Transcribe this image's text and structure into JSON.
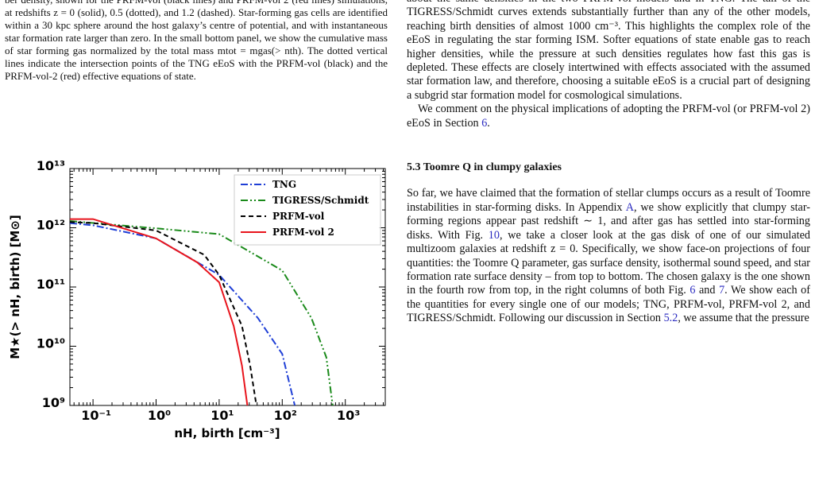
{
  "caption": {
    "text": "ber density, shown for the PRFM-vol (black lines) and PRFM-vol 2 (red lines) simulations, at redshifts z = 0 (solid), 0.5 (dotted), and 1.2 (dashed). Star-forming gas cells are identified within a 30 kpc sphere around the host galaxy’s centre of potential, and with instantaneous star formation rate larger than zero. In the small bottom panel, we show the cumulative mass of star forming gas normalized by the total mass mtot = mgas(> nth). The dotted vertical lines indicate the intersection points of the TNG eEoS with the PRFM-vol (black) and the PRFM-vol-2 (red) effective equations of state."
  },
  "chart_data": {
    "type": "line",
    "x_label": "nH, birth [cm⁻³]",
    "y_label": "M★(> nH, birth) [M⊙]",
    "log_x": true,
    "log_y": true,
    "legend": "upper right",
    "xlim": [
      0.043,
      4300
    ],
    "ylim": [
      1000000000.0,
      10000000000000.0
    ],
    "xticks": [
      {
        "value": 0.1,
        "label": "10⁻¹"
      },
      {
        "value": 1,
        "label": "10⁰"
      },
      {
        "value": 10,
        "label": "10¹"
      },
      {
        "value": 100,
        "label": "10²"
      },
      {
        "value": 1000,
        "label": "10³"
      }
    ],
    "yticks": [
      {
        "value": 1000000000.0,
        "label": "10⁹"
      },
      {
        "value": 10000000000.0,
        "label": "10¹⁰"
      },
      {
        "value": 100000000000.0,
        "label": "10¹¹"
      },
      {
        "value": 1000000000000.0,
        "label": "10¹²"
      },
      {
        "value": 10000000000000.0,
        "label": "10¹³"
      }
    ],
    "series": [
      {
        "name": "TNG",
        "color": "#1f3fd6",
        "linestyle": "dashdot",
        "x": [
          0.043,
          0.1,
          1,
          10,
          41,
          100,
          158
        ],
        "values": [
          1200000000000.0,
          1100000000000.0,
          660000000000.0,
          160000000000.0,
          30000000000.0,
          7400000000.0,
          1000000000.0
        ]
      },
      {
        "name": "TIGRESS/Schmidt",
        "color": "#1a8a1a",
        "linestyle": "dashdotdot",
        "x": [
          0.043,
          1,
          10,
          100,
          290,
          500,
          630
        ],
        "values": [
          1300000000000.0,
          980000000000.0,
          780000000000.0,
          190000000000.0,
          30000000000.0,
          6500000000.0,
          1000000000.0
        ]
      },
      {
        "name": "PRFM-vol",
        "color": "#000000",
        "linestyle": "dashed",
        "x": [
          0.043,
          0.1,
          1,
          5.8,
          10,
          23,
          31,
          39
        ],
        "values": [
          1250000000000.0,
          1200000000000.0,
          900000000000.0,
          350000000000.0,
          160000000000.0,
          22000000000.0,
          4700000000.0,
          1000000000.0
        ]
      },
      {
        "name": "PRFM-vol 2",
        "color": "#e8141c",
        "linestyle": "solid",
        "x": [
          0.043,
          0.1,
          1,
          4.5,
          10,
          17,
          23,
          28
        ],
        "values": [
          1400000000000.0,
          1400000000000.0,
          660000000000.0,
          260000000000.0,
          120000000000.0,
          22000000000.0,
          4700000000.0,
          1000000000.0
        ]
      }
    ]
  },
  "right_column": {
    "paragraph_1": "about the same densities in the two PRFM-vol models and in TNG. The tail of the TIGRESS/Schmidt curves extends substantially further than any of the other models, reaching birth densities of almost 1000 cm⁻³. This highlights the complex role of the eEoS in regulating the star forming ISM. Softer equations of state enable gas to reach higher densities, while the pressure at such densities regulates how fast this gas is depleted. These effects are closely intertwined with effects associated with the assumed star formation law, and therefore, choosing a suitable eEoS is a crucial part of designing a subgrid star formation model for cosmological simulations.",
    "paragraph_2": [
      "We comment on the physical implications of adopting the PRFM-vol (or PRFM-vol 2) eEoS in Section ",
      "6",
      "."
    ],
    "heading": "5.3 Toomre Q in clumpy galaxies",
    "paragraph_3": [
      "So far, we have claimed that the formation of stellar clumps occurs as a result of Toomre instabilities in star-forming disks. In Appendix ",
      "A",
      ", we show explicitly that clumpy star-forming regions appear past redshift ∼ 1, and after gas has settled into star-forming disks. With Fig. ",
      "10",
      ", we take a closer look at the gas disk of one of our simulated multizoom galaxies at redshift z = 0. Specifically, we show face-on projections of four quantities: the Toomre Q parameter, gas surface density, isothermal sound speed, and star formation rate surface density – from top to bottom. The chosen galaxy is the one shown in the fourth row from top, in the right columns of both Fig. ",
      "6",
      " and ",
      "7",
      ". We show each of the quantities for every single one of our models; TNG, PRFM-vol, PRFM-vol 2, and TIGRESS/Schmidt. Following our discussion in Section ",
      "5.2",
      ", we assume that the pressure"
    ]
  }
}
